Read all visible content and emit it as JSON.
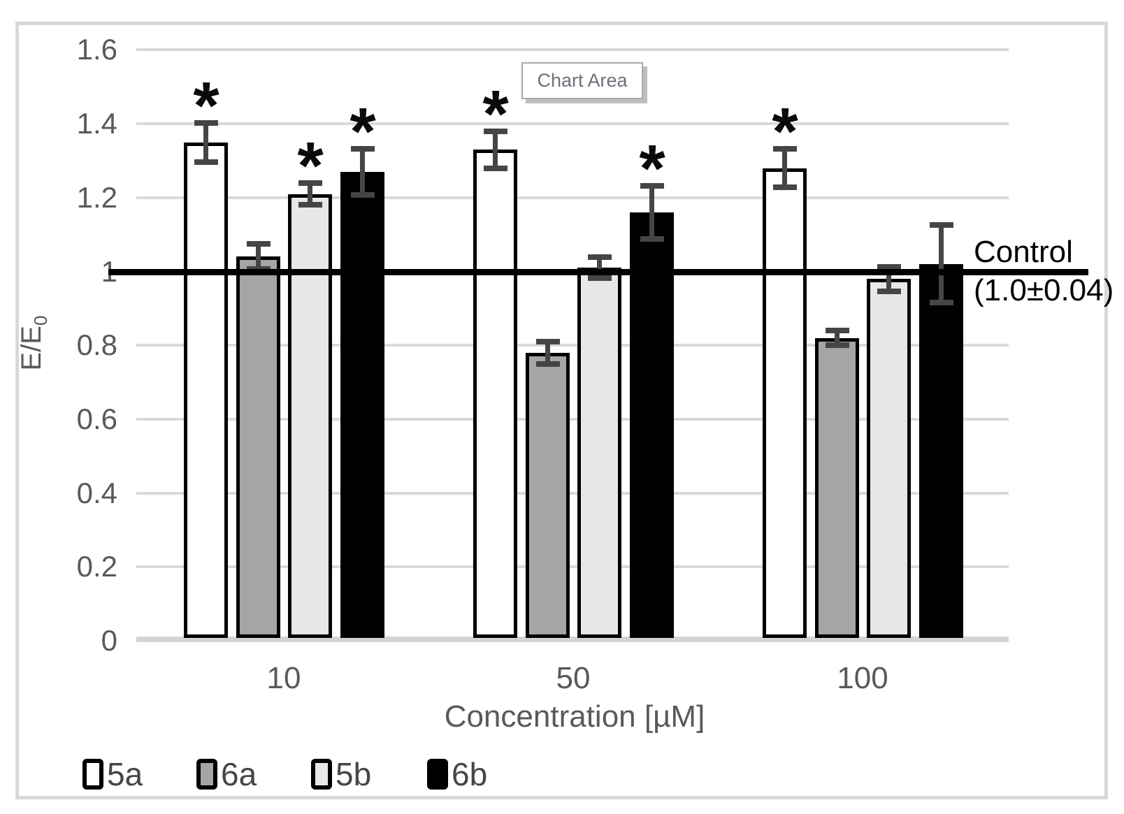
{
  "tooltip": {
    "label": "Chart Area"
  },
  "chart_data": {
    "type": "bar",
    "categories": [
      "10",
      "50",
      "100"
    ],
    "series": [
      {
        "name": "5a",
        "fill": "#ffffff",
        "values": [
          1.35,
          1.33,
          1.28
        ],
        "errors": [
          0.053,
          0.05,
          0.052
        ],
        "significant": [
          true,
          true,
          true
        ]
      },
      {
        "name": "6a",
        "fill": "#a5a5a5",
        "values": [
          1.04,
          0.78,
          0.82
        ],
        "errors": [
          0.034,
          0.03,
          0.02
        ],
        "significant": [
          false,
          false,
          false
        ]
      },
      {
        "name": "5b",
        "fill": "#e7e7e7",
        "values": [
          1.21,
          1.01,
          0.98
        ],
        "errors": [
          0.029,
          0.028,
          0.033
        ],
        "significant": [
          true,
          false,
          false
        ]
      },
      {
        "name": "6b",
        "fill": "#000000",
        "values": [
          1.27,
          1.16,
          1.02
        ],
        "errors": [
          0.063,
          0.072,
          0.105
        ],
        "significant": [
          true,
          true,
          false
        ]
      }
    ],
    "xlabel": "Concentration [µM]",
    "ylabel": {
      "base": "E/E",
      "sub": "0"
    },
    "ylim": [
      0,
      1.6
    ],
    "ytick_step": 0.2,
    "grid": true,
    "legend_position": "bottom-left",
    "significance_marker": "*",
    "reference_line": {
      "value": 1.0,
      "label_line1": "Control",
      "label_line2": "(1.0±0.04)"
    },
    "colors": {
      "gridline": "#d9d9d9",
      "axis_line": "#d4d4d4",
      "error_bar": "#454545",
      "bar_outline": "#000000",
      "tick_text": "#595959",
      "legend_text": "#454545",
      "reference_line_color": "#000000"
    }
  }
}
